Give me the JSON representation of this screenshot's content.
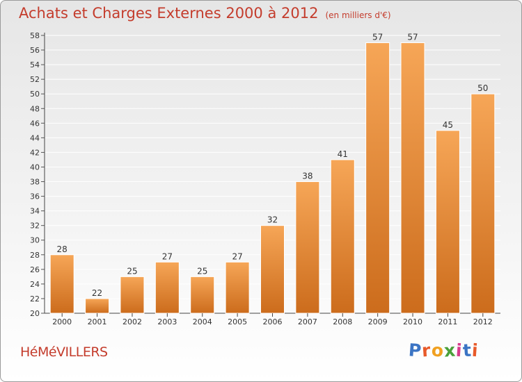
{
  "header": {
    "title": "Achats et Charges Externes 2000 à 2012",
    "subtitle": "(en milliers d'€)"
  },
  "footer": {
    "commune": "HéMéVILLERS",
    "brand": "Proxiti",
    "brand_colors": [
      "#3b74c4",
      "#e85a2a",
      "#f0a020",
      "#4aa03a",
      "#d83c8c",
      "#3b74c4",
      "#e85a2a"
    ]
  },
  "colors": {
    "bar_top": "#f6a657",
    "bar_bottom": "#cc6c1c",
    "title": "#c43c2c",
    "grid": "#ffffff"
  },
  "chart_data": {
    "type": "bar",
    "title": "Achats et Charges Externes 2000 à 2012",
    "subtitle": "(en milliers d'€)",
    "categories": [
      "2000",
      "2001",
      "2002",
      "2003",
      "2004",
      "2005",
      "2006",
      "2007",
      "2008",
      "2009",
      "2010",
      "2011",
      "2012"
    ],
    "values": [
      28,
      22,
      25,
      27,
      25,
      27,
      32,
      38,
      41,
      57,
      57,
      45,
      50
    ],
    "ylim": [
      20,
      58
    ],
    "yticks": [
      20,
      22,
      24,
      26,
      28,
      30,
      32,
      34,
      36,
      38,
      40,
      42,
      44,
      46,
      48,
      50,
      52,
      54,
      56,
      58
    ],
    "grid": true,
    "legend": "none"
  }
}
